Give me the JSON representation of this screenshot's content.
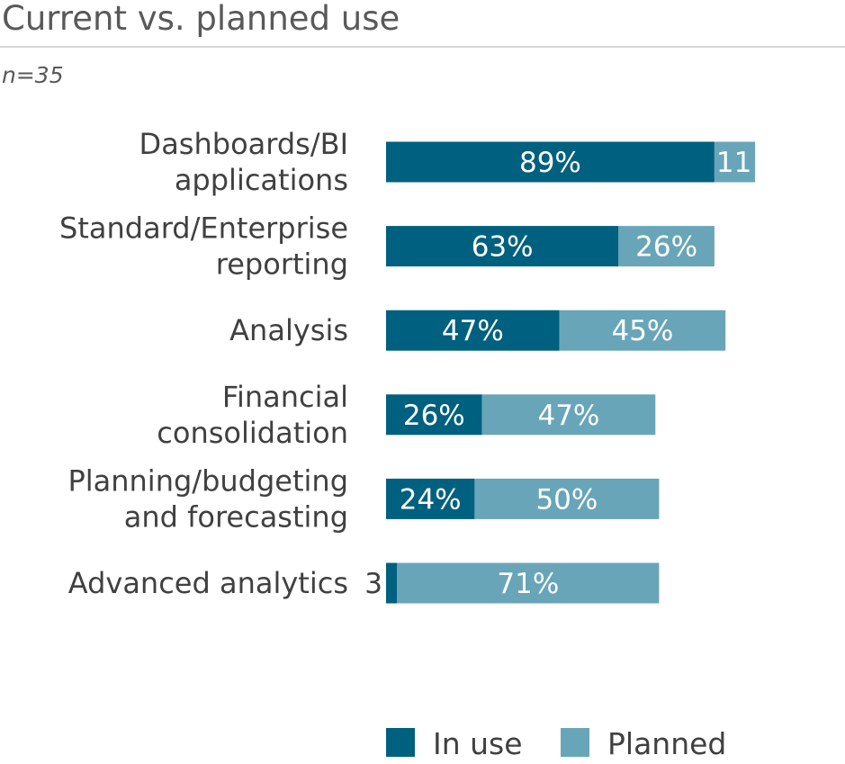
{
  "chart_data": {
    "type": "bar",
    "orientation": "horizontal",
    "stacked": true,
    "title": "Current vs. planned use",
    "subtitle": "n=35",
    "categories": [
      [
        "Dashboards/BI",
        "applications"
      ],
      [
        "Standard/Enterprise",
        "reporting"
      ],
      [
        "Analysis"
      ],
      [
        "Financial",
        "consolidation"
      ],
      [
        "Planning/budgeting",
        "and forecasting"
      ],
      [
        "Advanced analytics"
      ]
    ],
    "series": [
      {
        "name": "In use",
        "color": "#00607f",
        "values": [
          89,
          63,
          47,
          26,
          24,
          3
        ],
        "labels": [
          "89%",
          "63%",
          "47%",
          "26%",
          "24%",
          "3"
        ]
      },
      {
        "name": "Planned",
        "color": "#68a5b8",
        "values": [
          11,
          26,
          45,
          47,
          50,
          71
        ],
        "labels": [
          "11",
          "26%",
          "45%",
          "47%",
          "50%",
          "71%"
        ]
      }
    ],
    "xlim": [
      0,
      100
    ],
    "grid": false,
    "legend": "bottom"
  }
}
